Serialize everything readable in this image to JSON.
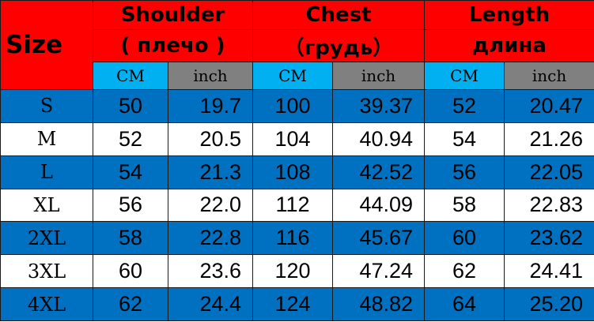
{
  "header": {
    "size": "Size",
    "groups": [
      {
        "title": "Shoulder",
        "subtitle": "( плечо )"
      },
      {
        "title": "Chest",
        "subtitle": "（грудь）"
      },
      {
        "title": "Length",
        "subtitle": "длина"
      }
    ],
    "unit_cm": "CM",
    "unit_inch": "inch"
  },
  "colors": {
    "header": "#ff0000",
    "cm": "#00b0f0",
    "inch": "#808080",
    "row_alt": "#0070c0",
    "row": "#ffffff"
  },
  "rows": [
    [
      "S",
      "50",
      "19.7",
      "100",
      "39.37",
      "52",
      "20.47"
    ],
    [
      "M",
      "52",
      "20.5",
      "104",
      "40.94",
      "54",
      "21.26"
    ],
    [
      "L",
      "54",
      "21.3",
      "108",
      "42.52",
      "56",
      "22.05"
    ],
    [
      "XL",
      "56",
      "22.0",
      "112",
      "44.09",
      "58",
      "22.83"
    ],
    [
      "2XL",
      "58",
      "22.8",
      "116",
      "45.67",
      "60",
      "23.62"
    ],
    [
      "3XL",
      "60",
      "23.6",
      "120",
      "47.24",
      "62",
      "24.41"
    ],
    [
      "4XL",
      "62",
      "24.4",
      "124",
      "48.82",
      "64",
      "25.20"
    ]
  ]
}
